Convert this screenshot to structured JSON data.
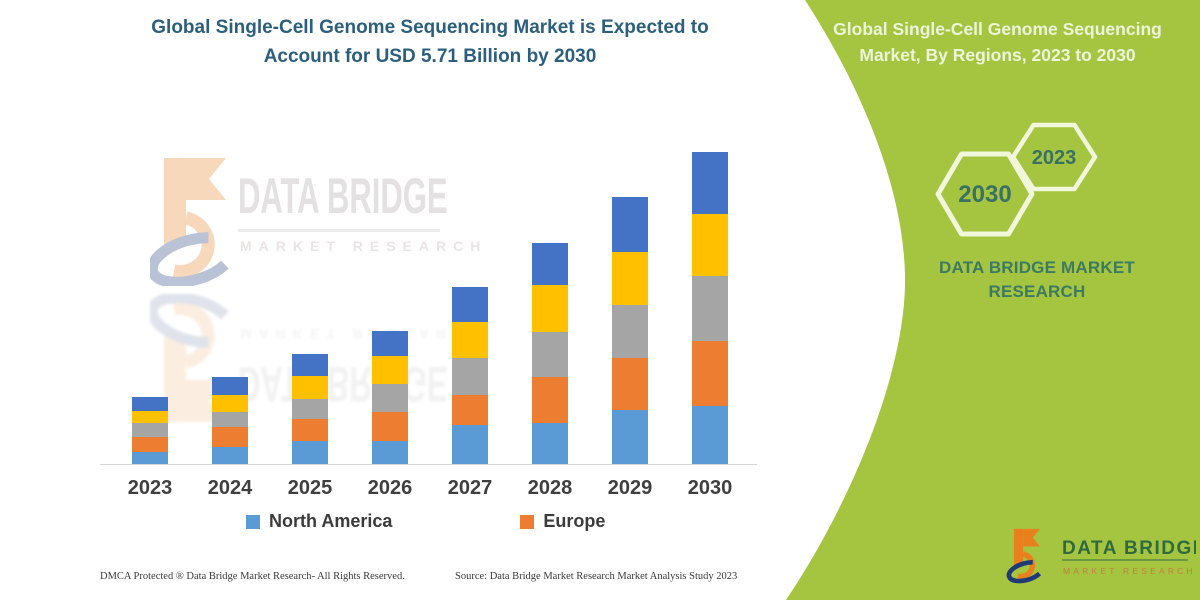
{
  "left_panel": {
    "title_line1": "Global Single-Cell Genome Sequencing Market is Expected to",
    "title_line2": "Account for USD 5.71 Billion by 2030",
    "watermark": {
      "brand": "DATA BRIDGE",
      "sub": "MARKET RESEARCH"
    },
    "footer": {
      "dmca": "DMCA Protected ® Data Bridge Market Research-  All Rights Reserved.",
      "source": "Source: Data Bridge Market Research  Market Analysis Study 2023"
    }
  },
  "right_panel": {
    "title": "Global Single-Cell Genome Sequencing Market, By Regions, 2023 to 2030",
    "hexagons": [
      {
        "label": "2030"
      },
      {
        "label": "2023"
      }
    ],
    "brand_text": "DATA BRIDGE MARKET RESEARCH",
    "logo": {
      "brand": "DATA BRIDGE",
      "sub": "MARKET RESEARCH"
    }
  },
  "colors": {
    "green_background": "#A5C440",
    "title_teal": "#2C5F7C",
    "hexagon_outline": "#F0F7DA",
    "hexagon_text": "#3A7164",
    "brand_green": "#3C7A62",
    "logo_orange": "#E8801E",
    "logo_navy": "#1F3A76"
  },
  "chart_data": {
    "type": "bar",
    "stacked": true,
    "title": "Global Single-Cell Genome Sequencing Market is Expected to Account for USD 5.71 Billion by 2030",
    "unit": "USD Billion",
    "categories": [
      "2023",
      "2024",
      "2025",
      "2026",
      "2027",
      "2028",
      "2029",
      "2030"
    ],
    "series": [
      {
        "name": "North America",
        "color": "#5B9BD5",
        "in_legend": true,
        "values": [
          0.22,
          0.31,
          0.42,
          0.42,
          0.71,
          0.75,
          0.99,
          1.06
        ]
      },
      {
        "name": "Europe",
        "color": "#ED7D31",
        "in_legend": true,
        "values": [
          0.27,
          0.36,
          0.4,
          0.53,
          0.55,
          0.84,
          0.95,
          1.19
        ]
      },
      {
        "name": "",
        "color": "#A5A5A5",
        "in_legend": false,
        "values": [
          0.26,
          0.27,
          0.36,
          0.51,
          0.68,
          0.82,
          0.97,
          1.19
        ]
      },
      {
        "name": "",
        "color": "#FFC000",
        "in_legend": false,
        "values": [
          0.22,
          0.31,
          0.42,
          0.51,
          0.66,
          0.86,
          0.97,
          1.13
        ]
      },
      {
        "name": "",
        "color": "#4472C4",
        "in_legend": false,
        "values": [
          0.26,
          0.33,
          0.4,
          0.46,
          0.64,
          0.77,
          1.0,
          1.14
        ]
      }
    ],
    "totals": [
      1.23,
      1.58,
      2.0,
      2.43,
      3.24,
      4.04,
      4.88,
      5.71
    ],
    "annotation_2030_total": "USD 5.71 Billion",
    "xlabel": "",
    "ylabel": "",
    "y_axis_visible": false,
    "grid": false,
    "legend_position": "bottom",
    "legend_entries": [
      "North America",
      "Europe"
    ]
  }
}
